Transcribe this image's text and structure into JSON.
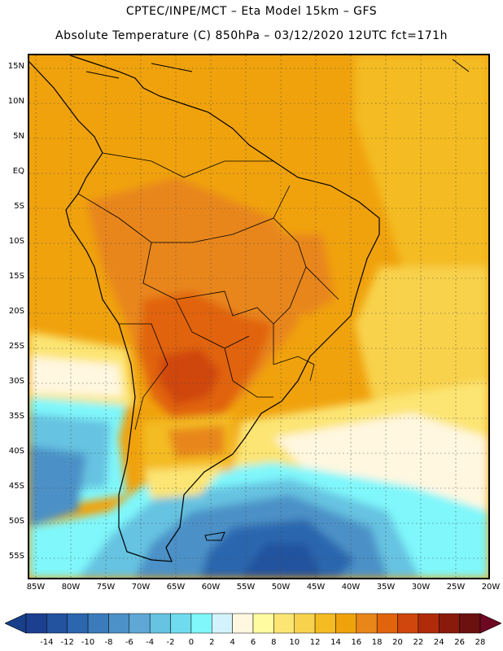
{
  "title_line1": "CPTEC/INPE/MCT –   Eta Model 15km – GFS",
  "title_line2": "Absolute Temperature (C) 850hPa – 03/12/2020 12UTC fct=171h",
  "lat_labels": [
    "15N",
    "10N",
    "5N",
    "EQ",
    "5S",
    "10S",
    "15S",
    "20S",
    "25S",
    "30S",
    "35S",
    "40S",
    "45S",
    "50S",
    "55S"
  ],
  "lon_labels": [
    "85W",
    "80W",
    "75W",
    "70W",
    "65W",
    "60W",
    "55W",
    "50W",
    "45W",
    "40W",
    "35W",
    "30W",
    "25W",
    "20W"
  ],
  "colorbar": {
    "labels": [
      "-14",
      "-12",
      "-10",
      "-8",
      "-6",
      "-4",
      "-2",
      "0",
      "2",
      "4",
      "6",
      "8",
      "10",
      "12",
      "14",
      "16",
      "18",
      "20",
      "22",
      "24",
      "26",
      "28"
    ],
    "colors": [
      "#1c3f8f",
      "#23529e",
      "#2c66ae",
      "#3b7bbb",
      "#4c91c7",
      "#5fa8d6",
      "#66c3e1",
      "#6edcee",
      "#7ff7fb",
      "#d2f3fb",
      "#fff7e0",
      "#fffba0",
      "#fce573",
      "#f8d24c",
      "#f4bb22",
      "#f0a20d",
      "#e8861a",
      "#e1640c",
      "#cf470c",
      "#b02b0a",
      "#8a1a0c",
      "#6c1010"
    ],
    "under_color": "#173f8a",
    "over_color": "#6e0722"
  }
}
